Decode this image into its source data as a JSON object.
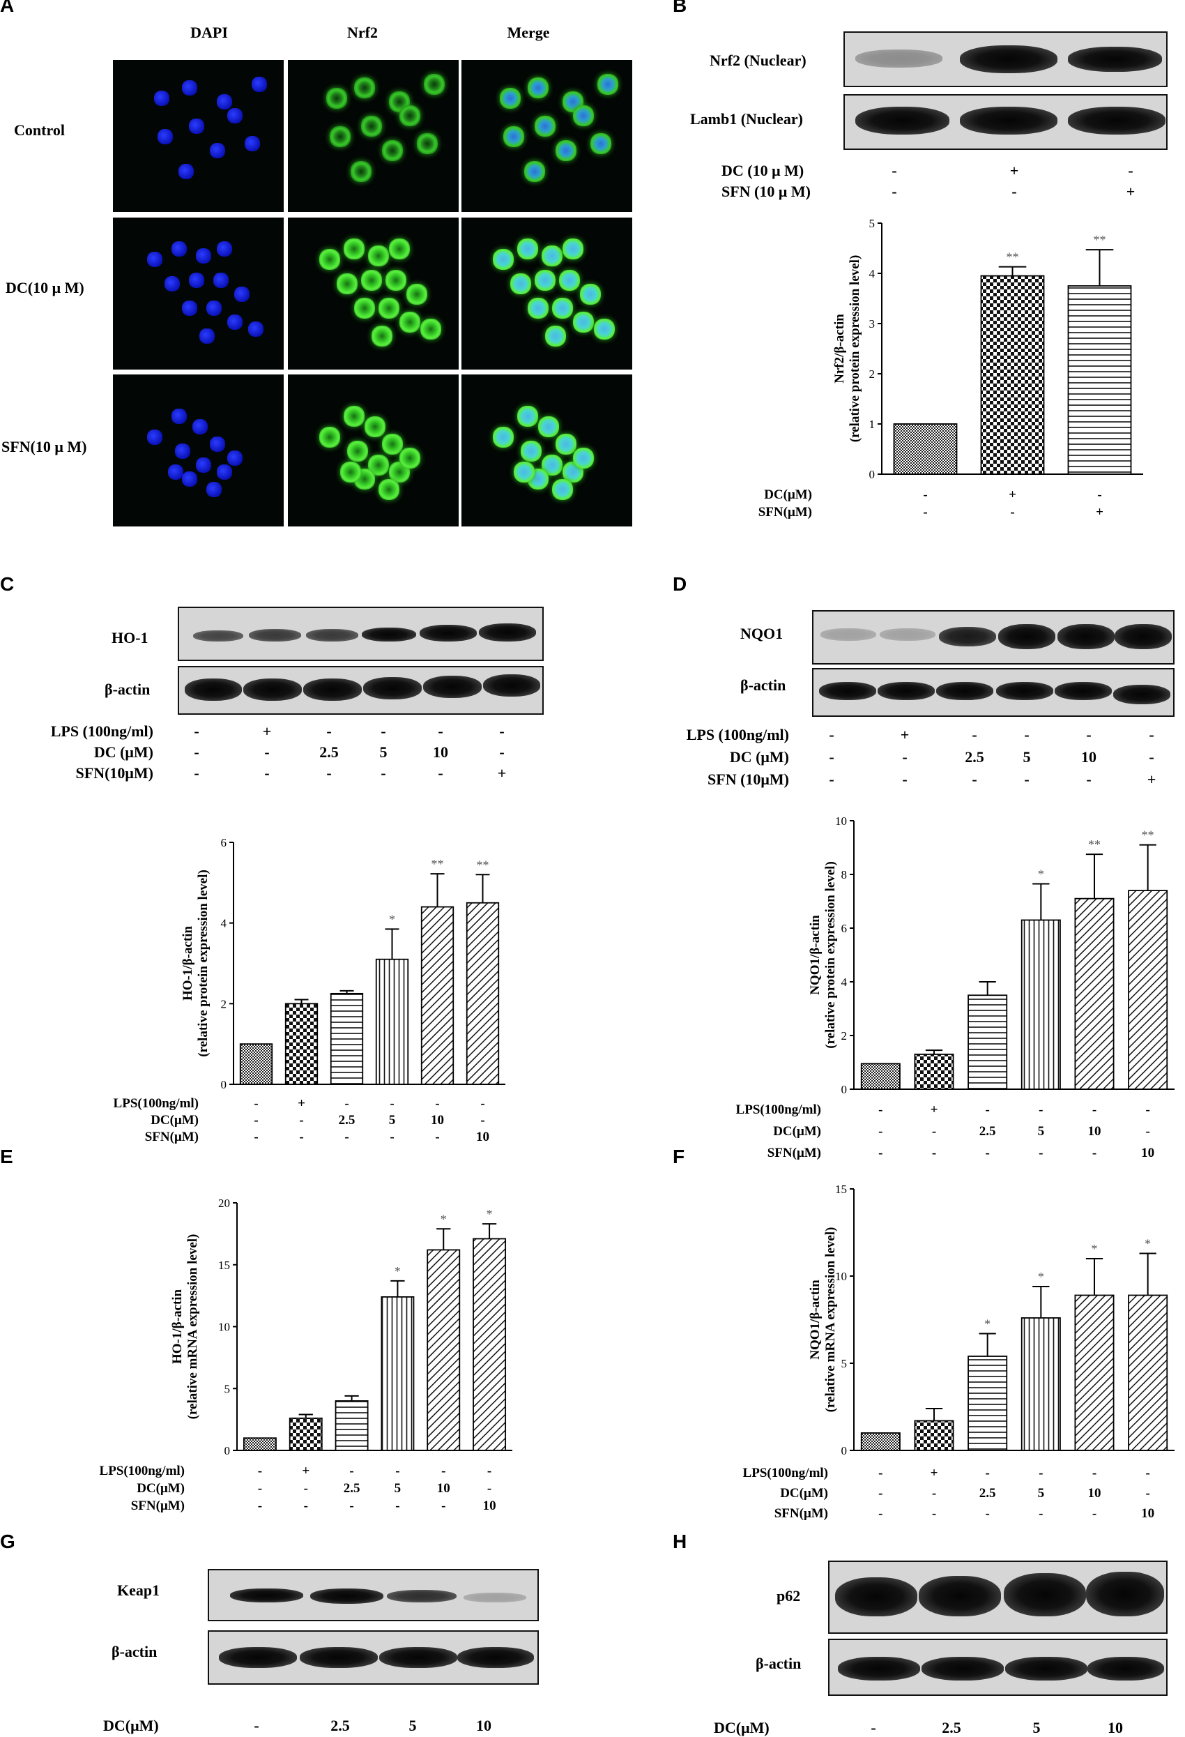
{
  "panels": {
    "A": {
      "label": "A",
      "columns": [
        "DAPI",
        "Nrf2",
        "Merge"
      ],
      "rows": [
        "Control",
        "DC(10 μ M)",
        "SFN(10 μ M)"
      ]
    },
    "B": {
      "label": "B",
      "blot_rows": [
        "Nrf2  (Nuclear)",
        "Lamb1  (Nuclear)"
      ],
      "treatments": [
        {
          "name": "DC (10 μ M)",
          "values": [
            "-",
            "+",
            "-"
          ]
        },
        {
          "name": "SFN (10 μ M)",
          "values": [
            "-",
            "-",
            "+"
          ]
        }
      ]
    },
    "C": {
      "label": "C",
      "blot_rows": [
        "HO-1",
        "β-actin"
      ],
      "treatments": [
        {
          "name": "LPS (100ng/ml)",
          "values": [
            "-",
            "+",
            "-",
            "-",
            "-",
            "-"
          ]
        },
        {
          "name": "DC (μM)",
          "values": [
            "-",
            "-",
            "2.5",
            "5",
            "10",
            "-"
          ]
        },
        {
          "name": "SFN(10μM)",
          "values": [
            "-",
            "-",
            "-",
            "-",
            "-",
            "+"
          ]
        }
      ]
    },
    "D": {
      "label": "D",
      "blot_rows": [
        "NQO1",
        "β-actin"
      ],
      "treatments": [
        {
          "name": "LPS (100ng/ml)",
          "values": [
            "-",
            "+",
            "-",
            "-",
            "-",
            "-"
          ]
        },
        {
          "name": "DC (μM)",
          "values": [
            "-",
            "-",
            "2.5",
            "5",
            "10",
            "-"
          ]
        },
        {
          "name": "SFN (10μM)",
          "values": [
            "-",
            "-",
            "-",
            "-",
            "-",
            "+"
          ]
        }
      ]
    },
    "E": {
      "label": "E"
    },
    "F": {
      "label": "F"
    },
    "G": {
      "label": "G",
      "blot_rows": [
        "Keap1",
        "β-actin"
      ],
      "treatment_name": "DC(μM)",
      "treatment_values": [
        "-",
        "2.5",
        "5",
        "10"
      ]
    },
    "H": {
      "label": "H",
      "blot_rows": [
        "p62",
        "β-actin"
      ],
      "treatment_name": "DC(μM)",
      "treatment_values": [
        "-",
        "2.5",
        "5",
        "10"
      ]
    }
  },
  "chart_data": [
    {
      "panel": "B",
      "type": "bar",
      "ylabel": "Nrf2/β-actin",
      "ylabel2": "(relative protein expression level)",
      "ylim": [
        0,
        5
      ],
      "yticks": [
        0,
        1,
        2,
        3,
        4,
        5
      ],
      "values": [
        1.0,
        3.95,
        3.75
      ],
      "errors": [
        0,
        0.18,
        0.72
      ],
      "significance": [
        "",
        "**",
        "**"
      ],
      "patterns": [
        "dense",
        "checker",
        "hlines"
      ],
      "treatments": [
        {
          "name": "DC(μM)",
          "values": [
            "-",
            "+",
            "-"
          ]
        },
        {
          "name": "SFN(μM)",
          "values": [
            "-",
            "-",
            "+"
          ]
        }
      ]
    },
    {
      "panel": "C",
      "type": "bar",
      "ylabel": "HO-1/β-actin",
      "ylabel2": "(relative protein expression level)",
      "ylim": [
        0,
        6
      ],
      "yticks": [
        0,
        2,
        4,
        6
      ],
      "values": [
        1.0,
        2.0,
        2.25,
        3.1,
        4.4,
        4.5
      ],
      "errors": [
        0,
        0.1,
        0.07,
        0.75,
        0.82,
        0.7
      ],
      "significance": [
        "",
        "",
        "",
        "*",
        "**",
        "**"
      ],
      "patterns": [
        "dense",
        "checker",
        "hlines",
        "vlines",
        "diagR",
        "diagR"
      ],
      "treatments": [
        {
          "name": "LPS(100ng/ml)",
          "values": [
            "-",
            "+",
            "-",
            "-",
            "-",
            "-"
          ]
        },
        {
          "name": "DC(μM)",
          "values": [
            "-",
            "-",
            "2.5",
            "5",
            "10",
            "-"
          ]
        },
        {
          "name": "SFN(μM)",
          "values": [
            "-",
            "-",
            "-",
            "-",
            "-",
            "10"
          ]
        }
      ]
    },
    {
      "panel": "D",
      "type": "bar",
      "ylabel": "NQO1/β-actin",
      "ylabel2": "(relative protein expression level)",
      "ylim": [
        0,
        10
      ],
      "yticks": [
        0,
        2,
        4,
        6,
        8,
        10
      ],
      "values": [
        0.95,
        1.3,
        3.5,
        6.3,
        7.1,
        7.4
      ],
      "errors": [
        0,
        0.15,
        0.5,
        1.35,
        1.65,
        1.7
      ],
      "significance": [
        "",
        "",
        "",
        "*",
        "**",
        "**"
      ],
      "patterns": [
        "dense",
        "checker",
        "hlines",
        "vlines",
        "diagR",
        "diagR"
      ],
      "treatments": [
        {
          "name": "LPS(100ng/ml)",
          "values": [
            "-",
            "+",
            "-",
            "-",
            "-",
            "-"
          ]
        },
        {
          "name": "DC(μM)",
          "values": [
            "-",
            "-",
            "2.5",
            "5",
            "10",
            "-"
          ]
        },
        {
          "name": "SFN(μM)",
          "values": [
            "-",
            "-",
            "-",
            "-",
            "-",
            "10"
          ]
        }
      ]
    },
    {
      "panel": "E",
      "type": "bar",
      "ylabel": "HO-1/β-actin",
      "ylabel2": "(relative mRNA expression level)",
      "ylim": [
        0,
        20
      ],
      "yticks": [
        0,
        5,
        10,
        15,
        20
      ],
      "values": [
        1.0,
        2.6,
        4.0,
        12.4,
        16.2,
        17.1
      ],
      "errors": [
        0,
        0.3,
        0.4,
        1.3,
        1.7,
        1.2
      ],
      "significance": [
        "",
        "",
        "",
        "*",
        "*",
        "*"
      ],
      "patterns": [
        "dense",
        "checker",
        "hlines",
        "vlines",
        "diagR",
        "diagR"
      ],
      "treatments": [
        {
          "name": "LPS(100ng/ml)",
          "values": [
            "-",
            "+",
            "-",
            "-",
            "-",
            "-"
          ]
        },
        {
          "name": "DC(μM)",
          "values": [
            "-",
            "-",
            "2.5",
            "5",
            "10",
            "-"
          ]
        },
        {
          "name": "SFN(μM)",
          "values": [
            "-",
            "-",
            "-",
            "-",
            "-",
            "10"
          ]
        }
      ]
    },
    {
      "panel": "F",
      "type": "bar",
      "ylabel": "NQO1/β-actin",
      "ylabel2": "(relative mRNA expression level)",
      "ylim": [
        0,
        15
      ],
      "yticks": [
        0,
        5,
        10,
        15
      ],
      "values": [
        1.0,
        1.7,
        5.4,
        7.6,
        8.9,
        8.9
      ],
      "errors": [
        0,
        0.7,
        1.3,
        1.8,
        2.1,
        2.4
      ],
      "significance": [
        "",
        "",
        "*",
        "*",
        "*",
        "*"
      ],
      "patterns": [
        "dense",
        "checker",
        "hlines",
        "vlines",
        "diagR",
        "diagR"
      ],
      "treatments": [
        {
          "name": "LPS(100ng/ml)",
          "values": [
            "-",
            "+",
            "-",
            "-",
            "-",
            "-"
          ]
        },
        {
          "name": "DC(μM)",
          "values": [
            "-",
            "-",
            "2.5",
            "5",
            "10",
            "-"
          ]
        },
        {
          "name": "SFN(μM)",
          "values": [
            "-",
            "-",
            "-",
            "-",
            "-",
            "10"
          ]
        }
      ]
    }
  ]
}
